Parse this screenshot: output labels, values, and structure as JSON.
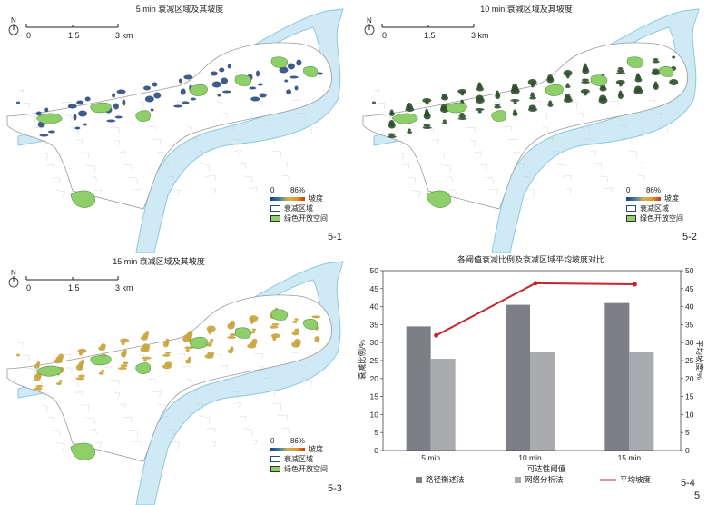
{
  "maps": [
    {
      "id": "5-1",
      "title": "5 min 衰减区域及其坡度",
      "label": "5-1"
    },
    {
      "id": "5-2",
      "title": "10 min 衰减区域及其坡度",
      "label": "5-2"
    },
    {
      "id": "5-3",
      "title": "15 min 衰减区域及其坡度",
      "label": "5-3"
    }
  ],
  "scalebar": {
    "ticks": [
      "0",
      "1.5",
      "3 km"
    ],
    "north": "N"
  },
  "legend": {
    "ramp_min": "0",
    "ramp_max": "86%",
    "slope": "坡度",
    "decay_area": "衰减区域",
    "green_space": "绿色开放空间"
  },
  "colors": {
    "water": "#cfeaf5",
    "water_edge": "#8cc8e0",
    "land": "#ffffff",
    "green": "#8fcf6a",
    "decay_5": "#2b4a7e",
    "decay_10": "#2f4e2c",
    "decay_15": "#c9a23a",
    "bar_path": "#7d7f86",
    "bar_network": "#a9abae",
    "slope_line": "#c0282d"
  },
  "chart_label": "5-4",
  "figure_label": "5",
  "chart_data": {
    "type": "bar",
    "title": "各阈值衰减比例及衰减区域平均坡度对比",
    "xlabel": "可达性阈值",
    "ylabel": "衰减比例/%",
    "y2label": "平均坡度/%",
    "categories": [
      "5 min",
      "10 min",
      "15 min"
    ],
    "ylim": [
      0,
      50
    ],
    "y2lim": [
      0,
      50
    ],
    "yticks": [
      "0",
      "5",
      "10",
      "15",
      "20",
      "25",
      "30",
      "35",
      "40",
      "45",
      "50"
    ],
    "series": [
      {
        "name": "路径衡述法",
        "type": "bar",
        "values": [
          34.5,
          40.5,
          41
        ]
      },
      {
        "name": "网络分析法",
        "type": "bar",
        "values": [
          25.5,
          27.5,
          27.3
        ]
      },
      {
        "name": "平均坡度",
        "type": "line",
        "axis": "right",
        "values": [
          32,
          46.5,
          46.2
        ]
      }
    ],
    "legend": "bottom"
  }
}
